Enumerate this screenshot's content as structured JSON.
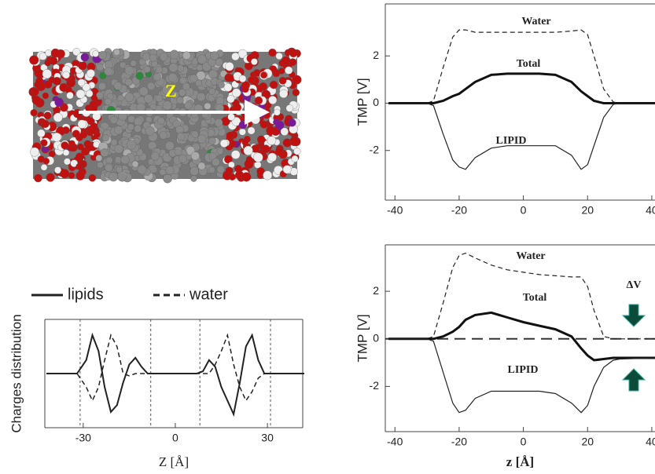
{
  "image_label": "Z",
  "chart_data": [
    {
      "type": "line",
      "ylabel": "TMP [V]",
      "xlim": [
        -43,
        41
      ],
      "ylim": [
        -4.1,
        4.2
      ],
      "xticks": [
        -40,
        -20,
        0,
        20,
        40
      ],
      "yticks": [
        -2,
        0,
        2
      ],
      "x": [
        -42,
        -30,
        -28,
        -25,
        -22,
        -20,
        -18,
        -15,
        -10,
        -5,
        0,
        5,
        10,
        15,
        18,
        20,
        22,
        25,
        28,
        30,
        42
      ],
      "series": [
        {
          "name": "Water",
          "color": "#222",
          "dash": true,
          "linewidth": 1.2,
          "values": [
            0,
            0,
            0.1,
            1.5,
            2.8,
            3.1,
            3.1,
            3.0,
            3.0,
            3.0,
            3.0,
            3.0,
            3.0,
            3.05,
            3.1,
            2.9,
            2.0,
            0.6,
            0.05,
            0,
            0
          ]
        },
        {
          "name": "Total",
          "color": "#111",
          "dash": false,
          "linewidth": 3,
          "values": [
            0,
            0,
            0,
            0.1,
            0.3,
            0.4,
            0.6,
            0.9,
            1.2,
            1.25,
            1.25,
            1.25,
            1.2,
            0.9,
            0.5,
            0.3,
            0.1,
            0,
            0,
            0,
            0
          ]
        },
        {
          "name": "LIPID",
          "color": "#222",
          "dash": false,
          "linewidth": 1.2,
          "values": [
            0,
            0,
            -0.1,
            -1.3,
            -2.4,
            -2.7,
            -2.8,
            -2.3,
            -1.9,
            -1.8,
            -1.8,
            -1.8,
            -1.8,
            -2.2,
            -2.8,
            -2.6,
            -1.8,
            -0.6,
            -0.05,
            0,
            0
          ]
        }
      ]
    },
    {
      "type": "line",
      "ylabel": "TMP [V]",
      "xlabel": "z [Å]",
      "annotation": "ΔV",
      "xlim": [
        -43,
        41
      ],
      "ylim": [
        -3.9,
        3.95
      ],
      "xticks": [
        -40,
        -20,
        0,
        20,
        40
      ],
      "yticks": [
        -2,
        0,
        2
      ],
      "hlines": [
        0
      ],
      "x": [
        -42,
        -30,
        -28,
        -25,
        -22,
        -20,
        -18,
        -15,
        -10,
        -5,
        0,
        5,
        10,
        15,
        18,
        20,
        22,
        25,
        28,
        30,
        42
      ],
      "series": [
        {
          "name": "Water",
          "color": "#222",
          "dash": true,
          "linewidth": 1.2,
          "values": [
            0,
            0,
            0.1,
            1.5,
            3.0,
            3.5,
            3.6,
            3.4,
            3.1,
            2.9,
            2.8,
            2.7,
            2.65,
            2.6,
            2.6,
            2.2,
            1.2,
            0.1,
            0,
            0,
            0
          ]
        },
        {
          "name": "Total",
          "color": "#111",
          "dash": false,
          "linewidth": 3,
          "values": [
            0,
            0,
            0,
            0.1,
            0.3,
            0.5,
            0.8,
            1.0,
            1.1,
            0.9,
            0.7,
            0.55,
            0.4,
            0.1,
            -0.4,
            -0.7,
            -0.9,
            -0.85,
            -0.8,
            -0.8,
            -0.8
          ]
        },
        {
          "name": "LIPID",
          "color": "#222",
          "dash": false,
          "linewidth": 1.2,
          "values": [
            0,
            0,
            -0.1,
            -1.4,
            -2.7,
            -3.1,
            -3.0,
            -2.5,
            -2.2,
            -2.2,
            -2.2,
            -2.2,
            -2.3,
            -2.7,
            -3.1,
            -2.8,
            -2.0,
            -1.2,
            -0.9,
            -0.85,
            -0.8
          ]
        }
      ]
    },
    {
      "type": "line",
      "ylabel": "Charges distribution",
      "xlabel": "Z [Å]",
      "xlim": [
        -42.5,
        41.5
      ],
      "ylim": [
        -1.2,
        1.2
      ],
      "xticks": [
        -30,
        0,
        30
      ],
      "vlines": [
        -31,
        -8,
        8,
        31
      ],
      "x": [
        -42,
        -32,
        -29,
        -27,
        -25,
        -23,
        -21,
        -19,
        -17,
        -15,
        -13,
        -11,
        -9,
        -7,
        -3,
        0,
        3,
        7,
        9,
        11,
        13,
        15,
        17,
        19,
        21,
        23,
        25,
        27,
        29,
        32,
        42
      ],
      "series": [
        {
          "name": "lipids",
          "color": "#222",
          "dash": false,
          "linewidth": 2,
          "values": [
            0,
            0,
            0.3,
            0.85,
            0.5,
            -0.3,
            -0.85,
            -0.7,
            -0.2,
            0.2,
            0.35,
            0.15,
            0,
            0,
            0,
            0,
            0,
            0,
            0.05,
            0.3,
            0.15,
            -0.3,
            -0.6,
            -0.9,
            -0.2,
            0.6,
            0.85,
            0.3,
            0,
            0,
            0
          ]
        },
        {
          "name": "water",
          "color": "#222",
          "dash": true,
          "linewidth": 1.5,
          "values": [
            0,
            0,
            -0.3,
            -0.6,
            -0.3,
            0.3,
            0.85,
            0.6,
            0,
            -0.05,
            0,
            0,
            0,
            0,
            0,
            0,
            0,
            0,
            0,
            0,
            0.2,
            0.5,
            0.85,
            0.2,
            -0.3,
            -0.6,
            -0.4,
            -0.1,
            0,
            0,
            0
          ]
        }
      ]
    }
  ]
}
